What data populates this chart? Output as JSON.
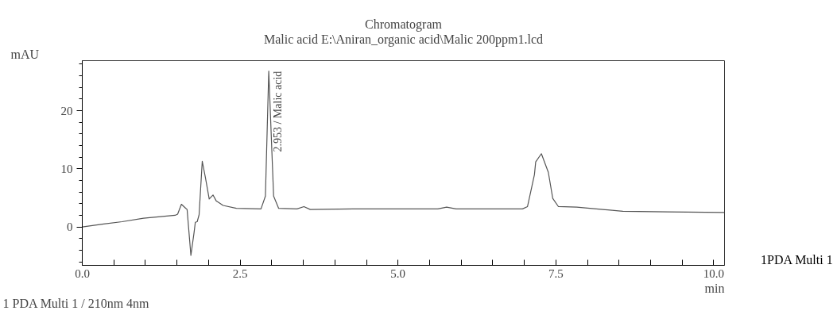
{
  "chart_data": {
    "type": "line",
    "title": "Chromatogram",
    "subtitle": "Malic acid E:\\Aniran_organic acid\\Malic 200ppm1.lcd",
    "xlabel": "min",
    "ylabel": "mAU",
    "x": [
      0,
      0.34,
      0.63,
      0.97,
      1.47,
      1.51,
      1.57,
      1.63,
      1.66,
      1.72,
      1.77,
      1.79,
      1.82,
      1.85,
      1.9,
      1.95,
      2.01,
      2.07,
      2.12,
      2.23,
      2.44,
      2.83,
      2.9,
      2.953,
      3.03,
      3.11,
      3.4,
      3.51,
      3.61,
      4.29,
      5.16,
      5.63,
      5.77,
      5.92,
      6.97,
      7.05,
      7.16,
      7.18,
      7.27,
      7.38,
      7.45,
      7.54,
      7.83,
      8.56,
      9.28,
      10.17
    ],
    "series": [
      {
        "color": "#555555",
        "values": [
          0,
          0.5,
          0.9,
          1.5,
          2.0,
          2.2,
          3.9,
          3.3,
          3.0,
          -4.9,
          -1.0,
          0.8,
          0.9,
          2.1,
          11.3,
          8.5,
          4.8,
          5.5,
          4.5,
          3.7,
          3.2,
          3.1,
          5.3,
          26.8,
          5.3,
          3.2,
          3.1,
          3.5,
          3.0,
          3.1,
          3.1,
          3.1,
          3.4,
          3.1,
          3.1,
          3.5,
          9.0,
          11.2,
          12.6,
          9.4,
          4.9,
          3.5,
          3.4,
          2.7,
          2.6,
          2.5
        ]
      }
    ],
    "xlim": [
      0,
      10.17
    ],
    "ylim": [
      -6.6,
      28.6
    ],
    "xticks": [
      {
        "value": 0,
        "label": "0.0"
      },
      {
        "value": 0.5,
        "label": null
      },
      {
        "value": 1,
        "label": null
      },
      {
        "value": 1.5,
        "label": null
      },
      {
        "value": 2,
        "label": null
      },
      {
        "value": 2.5,
        "label": "2.5"
      },
      {
        "value": 3,
        "label": null
      },
      {
        "value": 3.5,
        "label": null
      },
      {
        "value": 4,
        "label": null
      },
      {
        "value": 4.5,
        "label": null
      },
      {
        "value": 5,
        "label": "5.0"
      },
      {
        "value": 5.5,
        "label": null
      },
      {
        "value": 6,
        "label": null
      },
      {
        "value": 6.5,
        "label": null
      },
      {
        "value": 7,
        "label": null
      },
      {
        "value": 7.5,
        "label": "7.5"
      },
      {
        "value": 8,
        "label": null
      },
      {
        "value": 8.5,
        "label": null
      },
      {
        "value": 9,
        "label": null
      },
      {
        "value": 9.5,
        "label": null
      },
      {
        "value": 10,
        "label": "10.0"
      }
    ],
    "yticks": [
      {
        "value": -6,
        "label": null
      },
      {
        "value": -4,
        "label": null
      },
      {
        "value": -2,
        "label": null
      },
      0,
      {
        "value": 2,
        "label": null
      },
      {
        "value": 4,
        "label": null
      },
      {
        "value": 6,
        "label": null
      },
      {
        "value": 8,
        "label": null
      },
      10,
      {
        "value": 12,
        "label": null
      },
      {
        "value": 14,
        "label": null
      },
      {
        "value": 16,
        "label": null
      },
      {
        "value": 18,
        "label": null
      },
      20,
      {
        "value": 22,
        "label": null
      },
      {
        "value": 24,
        "label": null
      },
      {
        "value": 26,
        "label": null
      },
      {
        "value": 28,
        "label": null
      }
    ],
    "grid": false,
    "marker": "none",
    "line_style": "solid",
    "annotations": [
      {
        "text": "2.953 / Malic acid",
        "x": 2.953,
        "y": 26.8
      },
      "1PDA Multi 1",
      "1   PDA Multi 1 / 210nm 4nm"
    ]
  }
}
